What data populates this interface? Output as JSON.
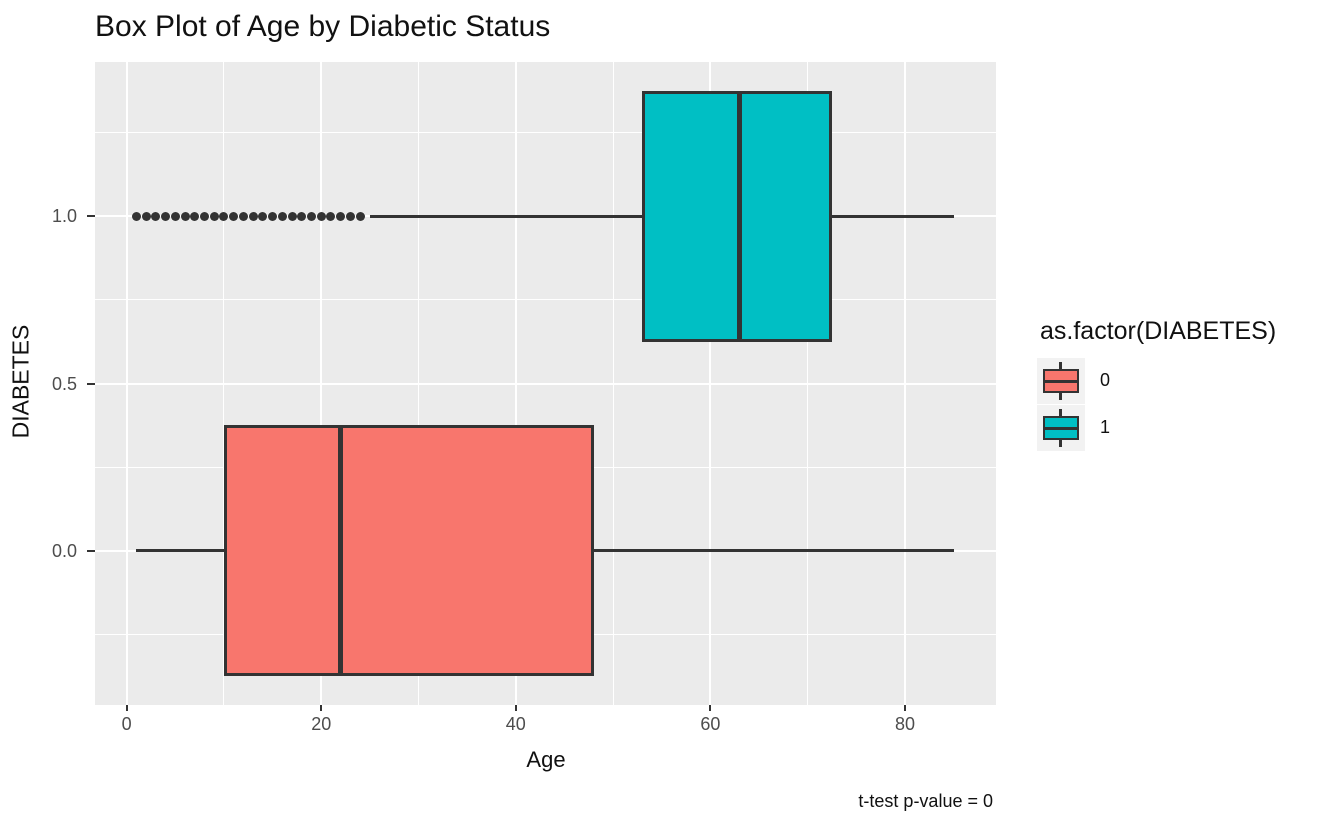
{
  "chart_data": {
    "type": "boxplot",
    "orientation": "horizontal",
    "title": "Box Plot of Age by Diabetic Status",
    "xlabel": "Age",
    "ylabel": "DIABETES",
    "caption": "t-test p-value = 0",
    "x_axis": {
      "range": [
        -3.25,
        89.35
      ],
      "ticks": [
        {
          "value": 0,
          "label": "0"
        },
        {
          "value": 20,
          "label": "20"
        },
        {
          "value": 40,
          "label": "40"
        },
        {
          "value": 60,
          "label": "60"
        },
        {
          "value": 80,
          "label": "80"
        }
      ],
      "minor": [
        10,
        30,
        50,
        70
      ]
    },
    "y_axis": {
      "range": [
        -0.4625,
        1.4625
      ],
      "ticks": [
        {
          "value": 0.0,
          "label": "0.0"
        },
        {
          "value": 0.5,
          "label": "0.5"
        },
        {
          "value": 1.0,
          "label": "1.0"
        }
      ],
      "minor": [
        -0.25,
        0.25,
        0.75,
        1.25
      ]
    },
    "box_half_width": 0.375,
    "series": [
      {
        "name": "0",
        "y": 0,
        "color": "#F8766D",
        "whisker_low": 1,
        "q1": 10,
        "median": 22,
        "q3": 48,
        "whisker_high": 85,
        "outliers": []
      },
      {
        "name": "1",
        "y": 1,
        "color": "#00BFC4",
        "whisker_low": 25,
        "q1": 53,
        "median": 63,
        "q3": 72.5,
        "whisker_high": 85,
        "outliers": [
          1,
          2,
          3,
          4,
          5,
          6,
          7,
          8,
          9,
          10,
          11,
          12,
          13,
          14,
          15,
          16,
          17,
          18,
          19,
          20,
          21,
          22,
          23,
          24
        ]
      }
    ],
    "legend": {
      "title": "as.factor(DIABETES)",
      "entries": [
        {
          "label": "0",
          "color": "#F8766D"
        },
        {
          "label": "1",
          "color": "#00BFC4"
        }
      ]
    },
    "theme": {
      "panel_bg": "#EBEBEB",
      "grid": "#FFFFFF",
      "line": "#333333",
      "tick_text": "#4D4D4D",
      "text": "#111111",
      "key_bg": "#F2F2F2",
      "background": "#FFFFFF"
    }
  }
}
